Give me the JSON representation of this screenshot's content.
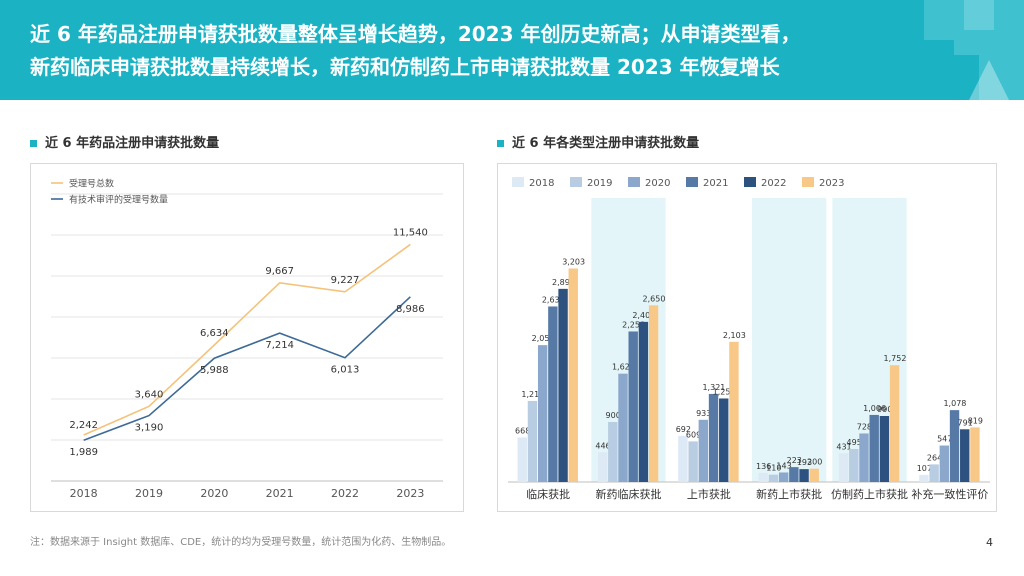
{
  "header": {
    "title_line1": "近 6 年药品注册申请获批数量整体呈增长趋势，2023 年创历史新高；从申请类型看，",
    "title_line2": "新药临床申请获批数量持续增长，新药和仿制药上市申请获批数量 2023 年恢复增长"
  },
  "left_section": {
    "title": "近 6 年药品注册申请获批数量"
  },
  "right_section": {
    "title": "近 6 年各类型注册申请获批数量"
  },
  "footnote": "注：数据来源于 Insight 数据库、CDE，统计的均为受理号数量，统计范围为化药、生物制品。",
  "page_number": "4",
  "colors": {
    "header_bg": "#1bb3c4",
    "line_total": "#f5c27a",
    "line_tech": "#3d6a96",
    "band": "#e3f5f8",
    "bars": [
      "#dde9f5",
      "#b8cce2",
      "#8ba8cc",
      "#5679a6",
      "#2e527f",
      "#f8c889"
    ]
  },
  "chart_data": [
    {
      "type": "line",
      "x": [
        "2018",
        "2019",
        "2020",
        "2021",
        "2022",
        "2023"
      ],
      "series": [
        {
          "name": "受理号总数",
          "values": [
            2242,
            3640,
            6634,
            9667,
            9227,
            11540
          ],
          "labels": [
            "2,242",
            "3,640",
            "6,634",
            "9,667",
            "9,227",
            "11,540"
          ]
        },
        {
          "name": "有技术审评的受理号数量",
          "values": [
            1989,
            3190,
            5988,
            7214,
            6013,
            8986
          ],
          "labels": [
            "1,989",
            "3,190",
            "5,988",
            "7,214",
            "6,013",
            "8,986"
          ]
        }
      ],
      "ylim": [
        0,
        14000
      ],
      "grid": true,
      "legend": "top-left"
    },
    {
      "type": "bar",
      "categories": [
        "临床获批",
        "新药临床获批",
        "上市获批",
        "新药上市获批",
        "仿制药上市获批",
        "补充一致性评价"
      ],
      "series": [
        {
          "name": "2018",
          "values": [
            668,
            446,
            692,
            136,
            431,
            107
          ],
          "labels": [
            "668",
            "446",
            "692",
            "136",
            "431",
            "107"
          ]
        },
        {
          "name": "2019",
          "values": [
            1216,
            900,
            609,
            110,
            495,
            264
          ],
          "labels": [
            "1,216",
            "900",
            "609",
            "110",
            "495",
            "264"
          ]
        },
        {
          "name": "2020",
          "values": [
            2053,
            1625,
            933,
            143,
            728,
            547
          ],
          "labels": [
            "2,053",
            "1,625",
            "933",
            "143",
            "728",
            "547"
          ]
        },
        {
          "name": "2021",
          "values": [
            2633,
            2258,
            1321,
            223,
            1006,
            1078
          ],
          "labels": [
            "2,633",
            "2,258",
            "1,321",
            "223",
            "1,006",
            "1,078"
          ]
        },
        {
          "name": "2022",
          "values": [
            2897,
            2402,
            1253,
            193,
            990,
            791
          ],
          "labels": [
            "2,897",
            "2,402",
            "1,253",
            "193",
            "990",
            "791"
          ]
        },
        {
          "name": "2023",
          "values": [
            3203,
            2650,
            2103,
            200,
            1752,
            819
          ],
          "labels": [
            "3,203",
            "2,650",
            "2,103",
            "200",
            "1,752",
            "819"
          ]
        }
      ],
      "ylim": [
        0,
        3600
      ],
      "highlighted_categories": [
        1,
        3,
        4
      ],
      "legend": "top"
    }
  ]
}
